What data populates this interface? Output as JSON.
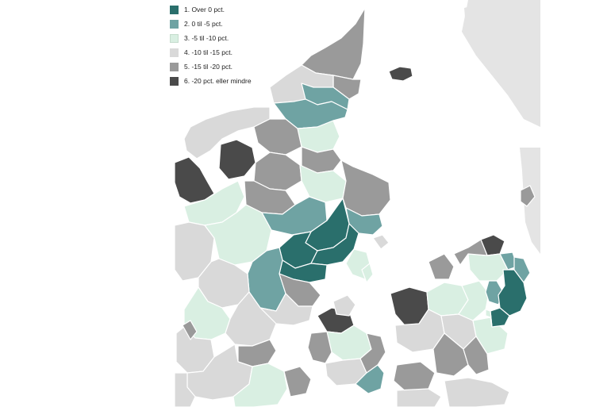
{
  "legend": {
    "items": [
      {
        "label": "1. Over 0 pct.",
        "color": "#2a6f6c"
      },
      {
        "label": "2. 0 til -5 pct.",
        "color": "#6fa3a3"
      },
      {
        "label": "3. -5 til -10 pct.",
        "color": "#d9efe2"
      },
      {
        "label": "4. -10 til -15 pct.",
        "color": "#d9d9d9"
      },
      {
        "label": "5. -15 til -20 pct.",
        "color": "#9a9a9a"
      },
      {
        "label": "6. -20 pct. eller mindre",
        "color": "#4a4a4a"
      }
    ]
  },
  "map": {
    "type": "choropleth",
    "region": "Danmark",
    "category_colors": {
      "1": "#2a6f6c",
      "2": "#6fa3a3",
      "3": "#d9efe2",
      "4": "#d9d9d9",
      "5": "#9a9a9a",
      "6": "#4a4a4a"
    }
  }
}
